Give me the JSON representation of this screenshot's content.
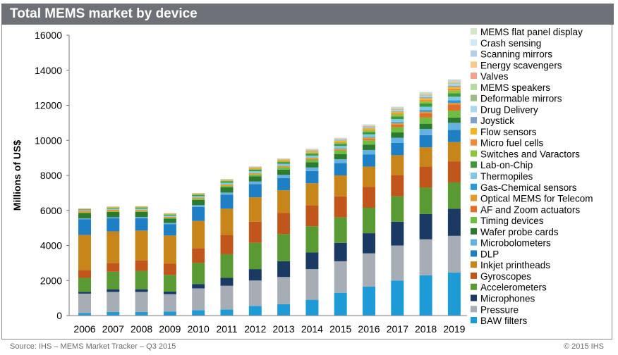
{
  "header": {
    "title": "Total MEMS market by device"
  },
  "footer": {
    "source": "Source: IHS – MEMS Market Tracker – Q3 2015",
    "copyright": "© 2015 IHS"
  },
  "chart_data": {
    "type": "bar",
    "stacked": true,
    "title": "Total MEMS market by device",
    "ylabel": "Millions of US$",
    "xlabel": "",
    "ylim": [
      0,
      16000
    ],
    "yticks": [
      0,
      2000,
      4000,
      6000,
      8000,
      10000,
      12000,
      14000,
      16000
    ],
    "legend_position": "right",
    "grid": false,
    "categories": [
      "2006",
      "2007",
      "2008",
      "2009",
      "2010",
      "2011",
      "2012",
      "2013",
      "2014",
      "2015",
      "2016",
      "2017",
      "2018",
      "2019"
    ],
    "series": [
      {
        "name": "BAW filters",
        "color": "#1c9bd7",
        "values": [
          150,
          200,
          200,
          220,
          300,
          350,
          550,
          650,
          900,
          1300,
          1650,
          2000,
          2300,
          2450
        ]
      },
      {
        "name": "Pressure",
        "color": "#a6adb4",
        "values": [
          1100,
          1150,
          1150,
          1000,
          1250,
          1350,
          1450,
          1550,
          1750,
          1800,
          1900,
          2000,
          2050,
          2100
        ]
      },
      {
        "name": "Microphones",
        "color": "#1b3a63",
        "values": [
          100,
          150,
          150,
          150,
          250,
          450,
          650,
          900,
          950,
          1050,
          1150,
          1350,
          1450,
          1550
        ]
      },
      {
        "name": "Accelerometers",
        "color": "#5a9a32",
        "values": [
          800,
          1000,
          1050,
          950,
          1200,
          1350,
          1500,
          1550,
          1500,
          1450,
          1450,
          1450,
          1500,
          1500
        ]
      },
      {
        "name": "Gyroscopes",
        "color": "#c0561b",
        "values": [
          450,
          500,
          600,
          650,
          850,
          1100,
          1200,
          1200,
          1200,
          1200,
          1200,
          1200,
          1200,
          1200
        ]
      },
      {
        "name": "Inkjet printheads",
        "color": "#c8861a",
        "values": [
          2000,
          1800,
          1700,
          1600,
          1550,
          1500,
          1400,
          1300,
          1250,
          1200,
          1150,
          1150,
          1100,
          1100
        ]
      },
      {
        "name": "DLP",
        "color": "#1f7fc4",
        "values": [
          900,
          750,
          700,
          650,
          800,
          800,
          750,
          700,
          700,
          700,
          700,
          700,
          700,
          700
        ]
      },
      {
        "name": "Microbolometers",
        "color": "#65b2e2",
        "values": [
          50,
          60,
          70,
          70,
          100,
          120,
          150,
          180,
          200,
          220,
          250,
          300,
          350,
          400
        ]
      },
      {
        "name": "Wafer probe cards",
        "color": "#2c7a2e",
        "values": [
          300,
          300,
          300,
          250,
          300,
          300,
          300,
          300,
          300,
          300,
          300,
          300,
          300,
          300
        ]
      },
      {
        "name": "Timing devices",
        "color": "#6fbe44",
        "values": [
          20,
          30,
          40,
          40,
          60,
          80,
          100,
          130,
          160,
          200,
          250,
          300,
          350,
          400
        ]
      },
      {
        "name": "AF and Zoom actuators",
        "color": "#e36c27",
        "values": [
          0,
          0,
          0,
          0,
          0,
          0,
          0,
          0,
          10,
          30,
          80,
          150,
          250,
          350
        ]
      },
      {
        "name": "Optical MEMS for Telecom",
        "color": "#e8972b",
        "values": [
          100,
          100,
          80,
          60,
          70,
          80,
          80,
          80,
          80,
          80,
          80,
          80,
          80,
          80
        ]
      },
      {
        "name": "Gas-Chemical sensors",
        "color": "#2a99d6",
        "values": [
          0,
          0,
          0,
          0,
          0,
          0,
          0,
          0,
          0,
          10,
          30,
          60,
          100,
          150
        ]
      },
      {
        "name": "Thermopiles",
        "color": "#7fc8e8",
        "values": [
          50,
          60,
          70,
          70,
          90,
          100,
          110,
          120,
          130,
          140,
          150,
          170,
          190,
          210
        ]
      },
      {
        "name": "Lab-on-Chip",
        "color": "#3c9a3c",
        "values": [
          40,
          50,
          60,
          60,
          70,
          80,
          90,
          100,
          110,
          120,
          140,
          160,
          180,
          200
        ]
      },
      {
        "name": "Switches and Varactors",
        "color": "#8cc63f",
        "values": [
          0,
          10,
          10,
          10,
          20,
          30,
          40,
          50,
          60,
          70,
          90,
          110,
          130,
          160
        ]
      },
      {
        "name": "Micro fuel cells",
        "color": "#f08a3c",
        "values": [
          0,
          0,
          0,
          0,
          0,
          0,
          10,
          10,
          20,
          30,
          40,
          60,
          80,
          100
        ]
      },
      {
        "name": "Flow sensors",
        "color": "#f4b321",
        "values": [
          30,
          40,
          40,
          40,
          50,
          60,
          60,
          70,
          70,
          80,
          80,
          90,
          100,
          110
        ]
      },
      {
        "name": "Joystick",
        "color": "#7e9fd0",
        "values": [
          0,
          0,
          0,
          0,
          0,
          0,
          0,
          0,
          10,
          20,
          30,
          40,
          50,
          60
        ]
      },
      {
        "name": "Drug Delivery",
        "color": "#a8d8f0",
        "values": [
          0,
          0,
          0,
          0,
          0,
          10,
          20,
          30,
          40,
          50,
          60,
          80,
          100,
          120
        ]
      },
      {
        "name": "Deformable mirrors",
        "color": "#9dbb8a",
        "values": [
          10,
          10,
          10,
          10,
          10,
          10,
          10,
          10,
          10,
          10,
          10,
          10,
          10,
          10
        ]
      },
      {
        "name": "MEMS speakers",
        "color": "#b5dba0",
        "values": [
          0,
          0,
          0,
          0,
          0,
          0,
          0,
          0,
          0,
          10,
          20,
          30,
          40,
          50
        ]
      },
      {
        "name": "Valves",
        "color": "#f2a28d",
        "values": [
          10,
          10,
          10,
          10,
          10,
          10,
          10,
          10,
          10,
          10,
          10,
          20,
          20,
          20
        ]
      },
      {
        "name": "Energy scavengers",
        "color": "#f7c98c",
        "values": [
          0,
          0,
          0,
          0,
          0,
          0,
          10,
          10,
          20,
          20,
          30,
          40,
          50,
          60
        ]
      },
      {
        "name": "Scanning mirrors",
        "color": "#b6cfe9",
        "values": [
          0,
          0,
          0,
          0,
          10,
          10,
          20,
          20,
          30,
          30,
          40,
          50,
          60,
          70
        ]
      },
      {
        "name": "Crash sensing",
        "color": "#cfeaf7",
        "values": [
          0,
          0,
          0,
          0,
          0,
          10,
          10,
          10,
          10,
          10,
          10,
          10,
          10,
          10
        ]
      },
      {
        "name": "MEMS flat panel display",
        "color": "#d3e6c8",
        "values": [
          0,
          0,
          0,
          0,
          0,
          0,
          0,
          0,
          10,
          10,
          10,
          20,
          20,
          30
        ]
      }
    ]
  }
}
